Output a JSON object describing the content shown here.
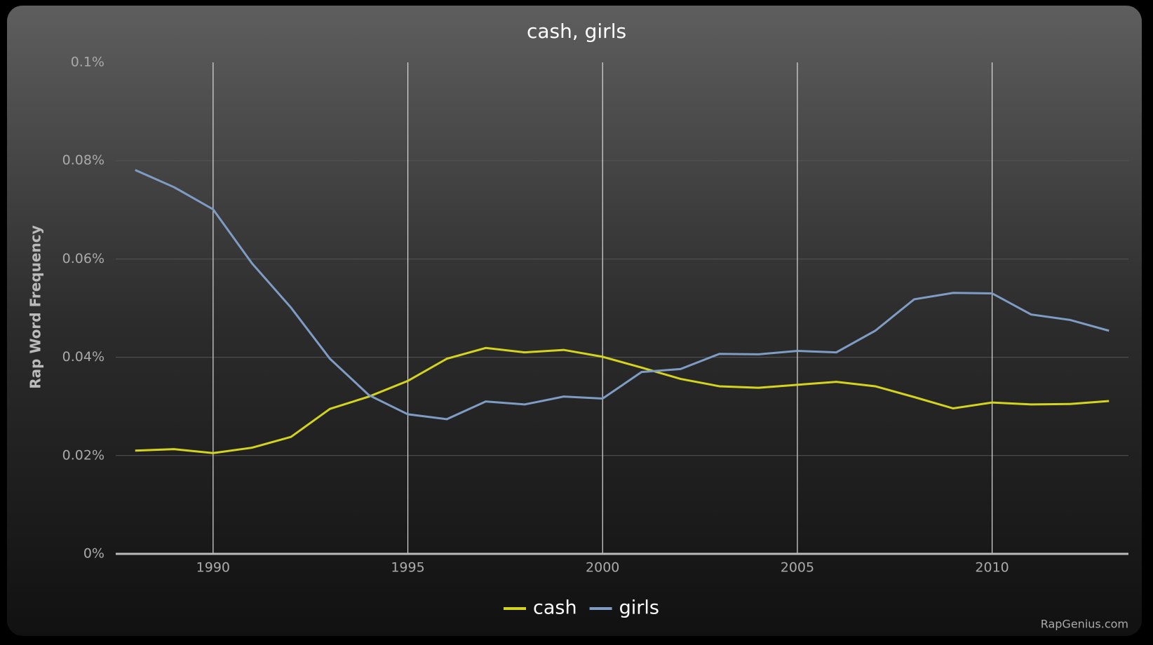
{
  "chart_data": {
    "type": "line",
    "title": "cash, girls",
    "y_label": "Rap Word Frequency",
    "credit": "RapGenius.com",
    "x": [
      1988,
      1989,
      1990,
      1991,
      1992,
      1993,
      1994,
      1995,
      1996,
      1997,
      1998,
      1999,
      2000,
      2001,
      2002,
      2003,
      2004,
      2005,
      2006,
      2007,
      2008,
      2009,
      2010,
      2011,
      2012,
      2013
    ],
    "series": [
      {
        "name": "cash",
        "color": "#d4d41e",
        "values": [
          0.021,
          0.0213,
          0.0205,
          0.0216,
          0.0238,
          0.0295,
          0.032,
          0.0352,
          0.0397,
          0.0419,
          0.041,
          0.0415,
          0.0401,
          0.0379,
          0.0356,
          0.0341,
          0.0338,
          0.0344,
          0.035,
          0.0341,
          0.0319,
          0.0296,
          0.0308,
          0.0304,
          0.0305,
          0.0311
        ]
      },
      {
        "name": "girls",
        "color": "#7f9cc4",
        "values": [
          0.0781,
          0.0746,
          0.0701,
          0.0591,
          0.0501,
          0.0397,
          0.0323,
          0.0284,
          0.0274,
          0.031,
          0.0304,
          0.032,
          0.0316,
          0.037,
          0.0376,
          0.0407,
          0.0406,
          0.0413,
          0.041,
          0.0454,
          0.0518,
          0.0531,
          0.053,
          0.0487,
          0.0476,
          0.0454
        ]
      }
    ],
    "xlim": [
      1987.5,
      2013.5
    ],
    "xticks": [
      1990,
      1995,
      2000,
      2005,
      2010
    ],
    "ylim": [
      0,
      0.1
    ],
    "yticks": [
      {
        "value": 0,
        "label": "0%"
      },
      {
        "value": 0.02,
        "label": "0.02%"
      },
      {
        "value": 0.04,
        "label": "0.04%"
      },
      {
        "value": 0.06,
        "label": "0.06%"
      },
      {
        "value": 0.08,
        "label": "0.08%"
      },
      {
        "value": 0.1,
        "label": "0.1%"
      }
    ],
    "grid": true,
    "legend": "bottom"
  }
}
